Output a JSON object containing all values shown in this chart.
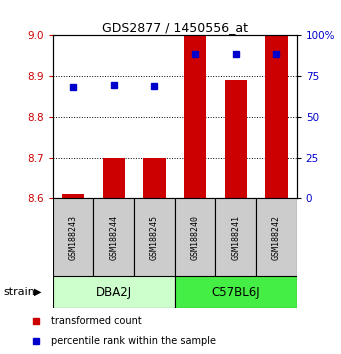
{
  "title": "GDS2877 / 1450556_at",
  "samples": [
    "GSM188243",
    "GSM188244",
    "GSM188245",
    "GSM188240",
    "GSM188241",
    "GSM188242"
  ],
  "groups": [
    {
      "name": "DBA2J",
      "indices": [
        0,
        1,
        2
      ],
      "color": "#ccffcc"
    },
    {
      "name": "C57BL6J",
      "indices": [
        3,
        4,
        5
      ],
      "color": "#44ee44"
    }
  ],
  "red_values": [
    8.61,
    8.7,
    8.7,
    9.0,
    8.89,
    9.0
  ],
  "blue_values_pct": [
    68.5,
    69.5,
    69.0,
    88.5,
    88.5,
    88.5
  ],
  "ylim_left": [
    8.6,
    9.0
  ],
  "ylim_right": [
    0,
    100
  ],
  "yticks_left": [
    8.6,
    8.7,
    8.8,
    8.9,
    9.0
  ],
  "yticks_right": [
    0,
    25,
    50,
    75,
    100
  ],
  "red_base": 8.6,
  "right_tick_labels": [
    "0",
    "25",
    "50",
    "75",
    "100%"
  ],
  "bar_width": 0.55,
  "marker_size": 5,
  "red_color": "#cc0000",
  "blue_color": "#0000cc",
  "strain_label": "strain",
  "legend_red": "transformed count",
  "legend_blue": "percentile rank within the sample",
  "sample_box_color": "#cccccc",
  "fig_width": 3.41,
  "fig_height": 3.54,
  "dpi": 100
}
